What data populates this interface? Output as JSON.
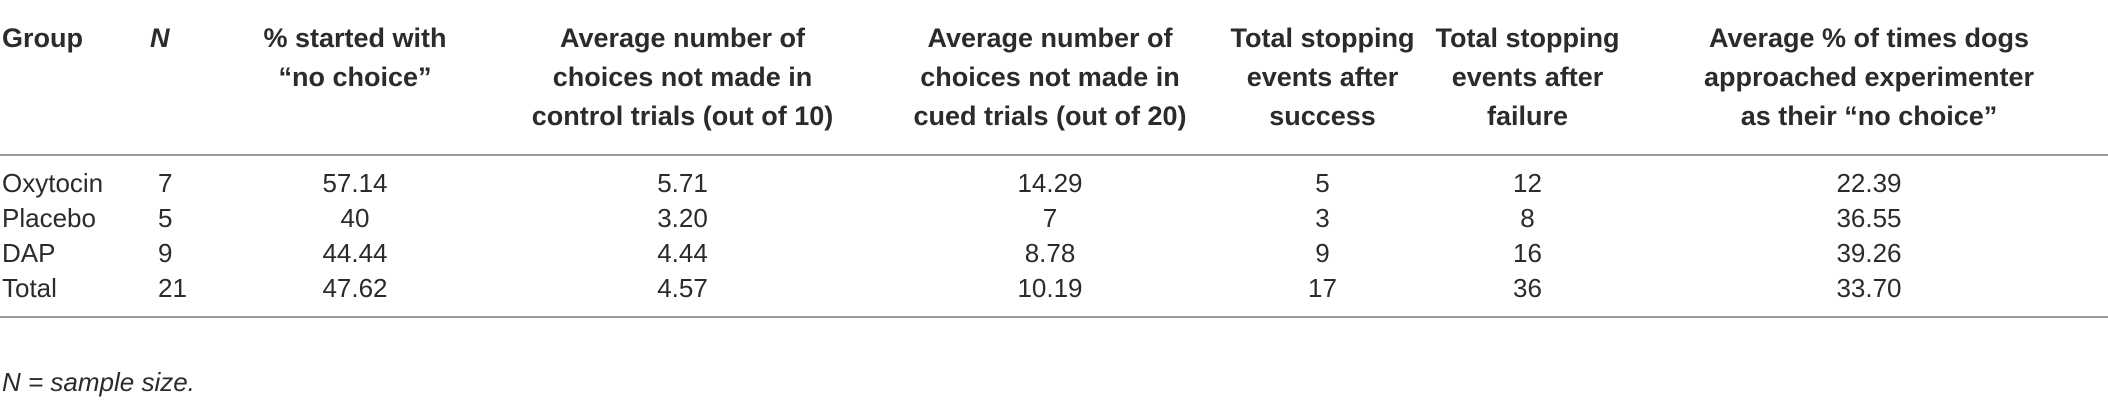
{
  "table": {
    "headers": {
      "group": "Group",
      "n": "N",
      "pct_started": [
        "% started with",
        "“no choice”"
      ],
      "control": [
        "Average number of",
        "choices not made in",
        "control trials (out of 10)"
      ],
      "cued": [
        "Average number of",
        "choices not made in",
        "cued trials (out of 20)"
      ],
      "stop_success": [
        "Total stopping",
        "events after",
        "success"
      ],
      "stop_failure": [
        "Total stopping",
        "events after",
        "failure"
      ],
      "approached": [
        "Average % of times dogs",
        "approached experimenter",
        "as their “no choice”"
      ]
    },
    "rows": [
      {
        "group": "Oxytocin",
        "n": "7",
        "pct_started": "57.14",
        "control": "5.71",
        "cued": "14.29",
        "stop_success": "5",
        "stop_failure": "12",
        "approached": "22.39"
      },
      {
        "group": "Placebo",
        "n": "5",
        "pct_started": "40",
        "control": "3.20",
        "cued": "7",
        "stop_success": "3",
        "stop_failure": "8",
        "approached": "36.55"
      },
      {
        "group": "DAP",
        "n": "9",
        "pct_started": "44.44",
        "control": "4.44",
        "cued": "8.78",
        "stop_success": "9",
        "stop_failure": "16",
        "approached": "39.26"
      },
      {
        "group": "Total",
        "n": "21",
        "pct_started": "47.62",
        "control": "4.57",
        "cued": "10.19",
        "stop_success": "17",
        "stop_failure": "36",
        "approached": "33.70"
      }
    ]
  },
  "footnote": "N = sample size."
}
